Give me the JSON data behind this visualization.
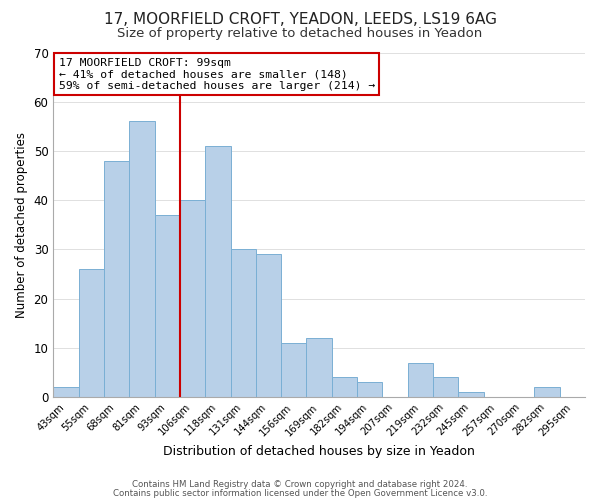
{
  "title1": "17, MOORFIELD CROFT, YEADON, LEEDS, LS19 6AG",
  "title2": "Size of property relative to detached houses in Yeadon",
  "xlabel": "Distribution of detached houses by size in Yeadon",
  "ylabel": "Number of detached properties",
  "bar_labels": [
    "43sqm",
    "55sqm",
    "68sqm",
    "81sqm",
    "93sqm",
    "106sqm",
    "118sqm",
    "131sqm",
    "144sqm",
    "156sqm",
    "169sqm",
    "182sqm",
    "194sqm",
    "207sqm",
    "219sqm",
    "232sqm",
    "245sqm",
    "257sqm",
    "270sqm",
    "282sqm",
    "295sqm"
  ],
  "bar_values": [
    2,
    26,
    48,
    56,
    37,
    40,
    51,
    30,
    29,
    11,
    12,
    4,
    3,
    0,
    7,
    4,
    1,
    0,
    0,
    2,
    0
  ],
  "bar_color": "#b8d0e8",
  "bar_edge_color": "#7aafd4",
  "vline_x_index": 4.5,
  "vline_color": "#cc0000",
  "ylim": [
    0,
    70
  ],
  "annotation_line1": "17 MOORFIELD CROFT: 99sqm",
  "annotation_line2": "← 41% of detached houses are smaller (148)",
  "annotation_line3": "59% of semi-detached houses are larger (214) →",
  "annotation_box_color": "#ffffff",
  "annotation_box_edge": "#cc0000",
  "footer1": "Contains HM Land Registry data © Crown copyright and database right 2024.",
  "footer2": "Contains public sector information licensed under the Open Government Licence v3.0.",
  "background_color": "#ffffff",
  "title1_fontsize": 11,
  "title2_fontsize": 9.5,
  "xlabel_fontsize": 9,
  "ylabel_fontsize": 8.5,
  "yticks": [
    0,
    10,
    20,
    30,
    40,
    50,
    60,
    70
  ],
  "grid_color": "#e0e0e0",
  "spine_color": "#aaaaaa"
}
